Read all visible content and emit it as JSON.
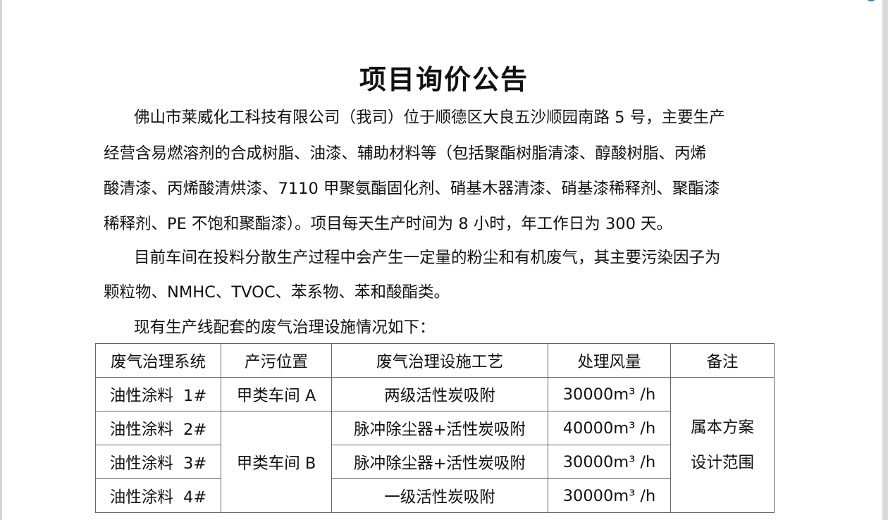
{
  "title": "项目询价公告",
  "paragraph_lines": [
    "佛山市莱威化工科技有限公司（我司）位于顺德区大良五沙顺园南路 5 号，主要生产",
    "经营含易燃溶剂的合成树脂、油漆、辅助材料等（包括聚酯树脂清漆、醇酸树脂、丙烯",
    "酸清漆、丙烯酸清烘漆、7110 甲聚氨酯固化剂、硝基木器清漆、硝基漆稀释剂、聚酯漆",
    "稀释剂、PE 不饱和聚酯漆）。项目每天生产时间为 8 小时，年工作日为 300 天。",
    "目前车间在投料分散生产过程中会产生一定量的粉尘和有机废气，其主要污染因子为",
    "颗粒物、NMHC、TVOC、苯系物、苯和酸酯类。",
    "现有生产线配套的废气治理设施情况如下："
  ],
  "table": {
    "headers": [
      "废气治理系统",
      "产污位置",
      "废气治理设施工艺",
      "处理风量",
      "备注"
    ],
    "rows": [
      {
        "system": "油性涂料  1#",
        "process": "两级活性炭吸附",
        "flow": "30000m³ /h"
      },
      {
        "system": "油性涂料  2#",
        "process": "脉冲除尘器+活性炭吸附",
        "flow": "40000m³ /h"
      },
      {
        "system": "油性涂料  3#",
        "process": "脉冲除尘器+活性炭吸附",
        "flow": "30000m³ /h"
      },
      {
        "system": "油性涂料  4#",
        "process": "一级活性炭吸附",
        "flow": "30000m³ /h"
      }
    ],
    "location_a": "甲类车间 A",
    "location_b": "甲类车间 B",
    "remark_line1": "属本方案",
    "remark_line2": "设计范围"
  }
}
